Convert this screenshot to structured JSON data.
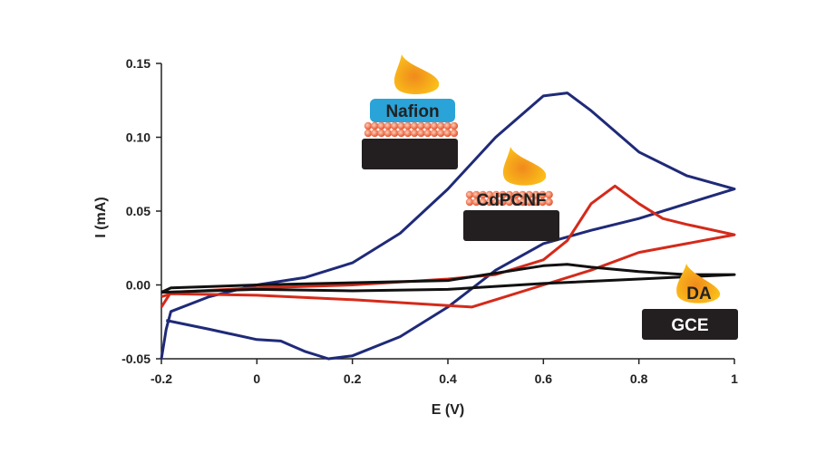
{
  "chart_data": {
    "type": "line",
    "title": "",
    "xlabel": "E (V)",
    "ylabel": "I (mA)",
    "xlim": [
      -0.2,
      1
    ],
    "ylim": [
      -0.05,
      0.15
    ],
    "xticks": [
      -0.2,
      0,
      0.2,
      0.4,
      0.6,
      0.8,
      1
    ],
    "xtick_labels": [
      "-0.2",
      "0",
      "0.2",
      "0.4",
      "0.6",
      "0.8",
      "1"
    ],
    "yticks": [
      -0.05,
      0,
      0.05,
      0.1,
      0.15
    ],
    "ytick_labels": [
      "-0.05",
      "0.00",
      "0.05",
      "0.10",
      "0.15"
    ],
    "grid": false,
    "series": [
      {
        "name": "Nafion/CdPCNF/GCE",
        "color": "#1f2a78",
        "x": [
          -0.2,
          -0.19,
          -0.18,
          -0.1,
          0,
          0.1,
          0.2,
          0.3,
          0.4,
          0.5,
          0.6,
          0.65,
          0.7,
          0.8,
          0.9,
          1,
          0.9,
          0.8,
          0.7,
          0.6,
          0.5,
          0.4,
          0.3,
          0.2,
          0.15,
          0.1,
          0.05,
          0,
          -0.1,
          -0.19
        ],
        "y": [
          -0.05,
          -0.03,
          -0.018,
          -0.008,
          0,
          0.005,
          0.015,
          0.035,
          0.065,
          0.1,
          0.128,
          0.13,
          0.118,
          0.09,
          0.074,
          0.065,
          0.055,
          0.045,
          0.037,
          0.028,
          0.01,
          -0.015,
          -0.035,
          -0.048,
          -0.05,
          -0.045,
          -0.038,
          -0.037,
          -0.03,
          -0.024
        ]
      },
      {
        "name": "CdPCNF/GCE",
        "color": "#d42a1a",
        "x": [
          -0.2,
          -0.18,
          0,
          0.2,
          0.4,
          0.5,
          0.6,
          0.65,
          0.7,
          0.75,
          0.8,
          0.85,
          0.9,
          1,
          0.9,
          0.8,
          0.7,
          0.6,
          0.5,
          0.45,
          0.4,
          0.2,
          0,
          -0.18,
          -0.2
        ],
        "y": [
          -0.015,
          -0.005,
          -0.002,
          0,
          0.004,
          0.007,
          0.017,
          0.03,
          0.055,
          0.067,
          0.055,
          0.045,
          0.041,
          0.034,
          0.028,
          0.022,
          0.01,
          0,
          -0.01,
          -0.015,
          -0.014,
          -0.01,
          -0.007,
          -0.006,
          -0.008
        ]
      },
      {
        "name": "GCE",
        "color": "#111111",
        "x": [
          -0.2,
          -0.18,
          0,
          0.4,
          0.5,
          0.6,
          0.65,
          0.7,
          0.8,
          0.9,
          1,
          0.8,
          0.6,
          0.4,
          0.2,
          0,
          -0.2
        ],
        "y": [
          -0.005,
          -0.002,
          0,
          0.003,
          0.008,
          0.013,
          0.014,
          0.012,
          0.009,
          0.007,
          0.007,
          0.004,
          0.001,
          -0.003,
          -0.004,
          -0.003,
          -0.005
        ]
      }
    ],
    "annotations": {
      "nafion": "Nafion",
      "cdpcnf": "CdPCNF",
      "da": "DA",
      "gce": "GCE"
    }
  }
}
